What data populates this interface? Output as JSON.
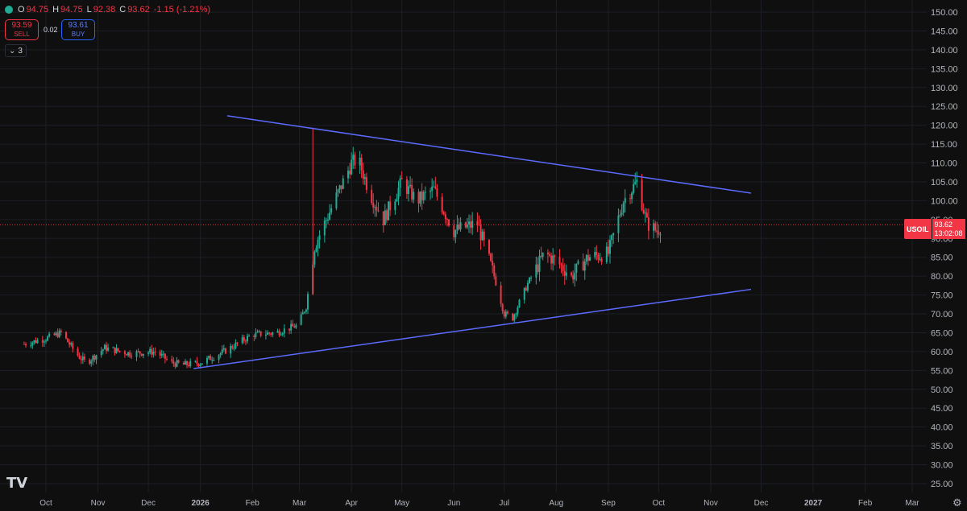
{
  "symbol": {
    "short_name": "USOIL",
    "open_label": "O",
    "open": "94.75",
    "high_label": "H",
    "high": "94.75",
    "low_label": "L",
    "low": "92.38",
    "close_label": "C",
    "close": "93.62",
    "change": "-1.15 (-1.21%)"
  },
  "trade": {
    "sell_price": "93.59",
    "sell_label": "SELL",
    "spread": "0.02",
    "buy_price": "93.61",
    "buy_label": "BUY"
  },
  "indicators": {
    "count": "3"
  },
  "last_price": {
    "value": "93.62",
    "countdown": "13:02:08"
  },
  "colors": {
    "background": "#0f0f0f",
    "up": "#22ab94",
    "down": "#f23645",
    "trendline": "#5c6bff",
    "grid": "#1c1f26",
    "axis_text": "#b2b5be"
  },
  "icons": {
    "logo": "tradingview-logo-icon",
    "settings": "gear-icon",
    "chevron": "chevron-down-icon",
    "status": "status-dot-icon"
  },
  "chart_data": {
    "type": "candlestick",
    "y_axis": {
      "ylim": [
        25,
        150
      ],
      "ticks": [
        "150.00",
        "145.00",
        "140.00",
        "135.00",
        "130.00",
        "125.00",
        "120.00",
        "115.00",
        "110.00",
        "105.00",
        "100.00",
        "95.00",
        "90.00",
        "85.00",
        "80.00",
        "75.00",
        "70.00",
        "65.00",
        "60.00",
        "55.00",
        "50.00",
        "45.00",
        "40.00",
        "35.00",
        "30.00",
        "25.00"
      ]
    },
    "x_axis": {
      "ticks": [
        "Oct",
        "Nov",
        "Dec",
        "2026",
        "Feb",
        "Mar",
        "Apr",
        "May",
        "Jun",
        "Jul",
        "Aug",
        "Sep",
        "Oct",
        "Nov",
        "Dec",
        "2027",
        "Feb",
        "Mar"
      ]
    },
    "price_path": [
      [
        "2025-09-18",
        62
      ],
      [
        "2025-10-01",
        63.5
      ],
      [
        "2025-10-10",
        65
      ],
      [
        "2025-10-20",
        59
      ],
      [
        "2025-10-25",
        57
      ],
      [
        "2025-11-05",
        61
      ],
      [
        "2025-11-20",
        59.5
      ],
      [
        "2025-12-05",
        60
      ],
      [
        "2025-12-15",
        57
      ],
      [
        "2025-12-22",
        56.5
      ],
      [
        "2026-01-01",
        57
      ],
      [
        "2026-01-15",
        60
      ],
      [
        "2026-02-01",
        64.5
      ],
      [
        "2026-02-15",
        65
      ],
      [
        "2026-02-28",
        67
      ],
      [
        "2026-03-05",
        72
      ],
      [
        "2026-03-10",
        88
      ],
      [
        "2026-03-20",
        98
      ],
      [
        "2026-04-01",
        110
      ],
      [
        "2026-04-05",
        111
      ],
      [
        "2026-04-12",
        102
      ],
      [
        "2026-04-20",
        95
      ],
      [
        "2026-05-01",
        105
      ],
      [
        "2026-05-10",
        100
      ],
      [
        "2026-05-20",
        103
      ],
      [
        "2026-06-01",
        92
      ],
      [
        "2026-06-15",
        94
      ],
      [
        "2026-06-25",
        80
      ],
      [
        "2026-07-01",
        70
      ],
      [
        "2026-07-06",
        69
      ],
      [
        "2026-07-15",
        78
      ],
      [
        "2026-07-25",
        86
      ],
      [
        "2026-08-01",
        84
      ],
      [
        "2026-08-10",
        80
      ],
      [
        "2026-08-20",
        85
      ],
      [
        "2026-09-01",
        86
      ],
      [
        "2026-09-10",
        100
      ],
      [
        "2026-09-18",
        105
      ],
      [
        "2026-09-24",
        94
      ],
      [
        "2026-09-30",
        92
      ],
      [
        "2026-10-03",
        93.62
      ]
    ],
    "trendlines": [
      {
        "name": "upper",
        "start": [
          "2026-01-17",
          122.5
        ],
        "end": [
          "2026-11-25",
          102
        ]
      },
      {
        "name": "lower",
        "start": [
          "2025-12-28",
          55.5
        ],
        "end": [
          "2026-11-25",
          76.5
        ]
      }
    ],
    "last": 93.62
  }
}
